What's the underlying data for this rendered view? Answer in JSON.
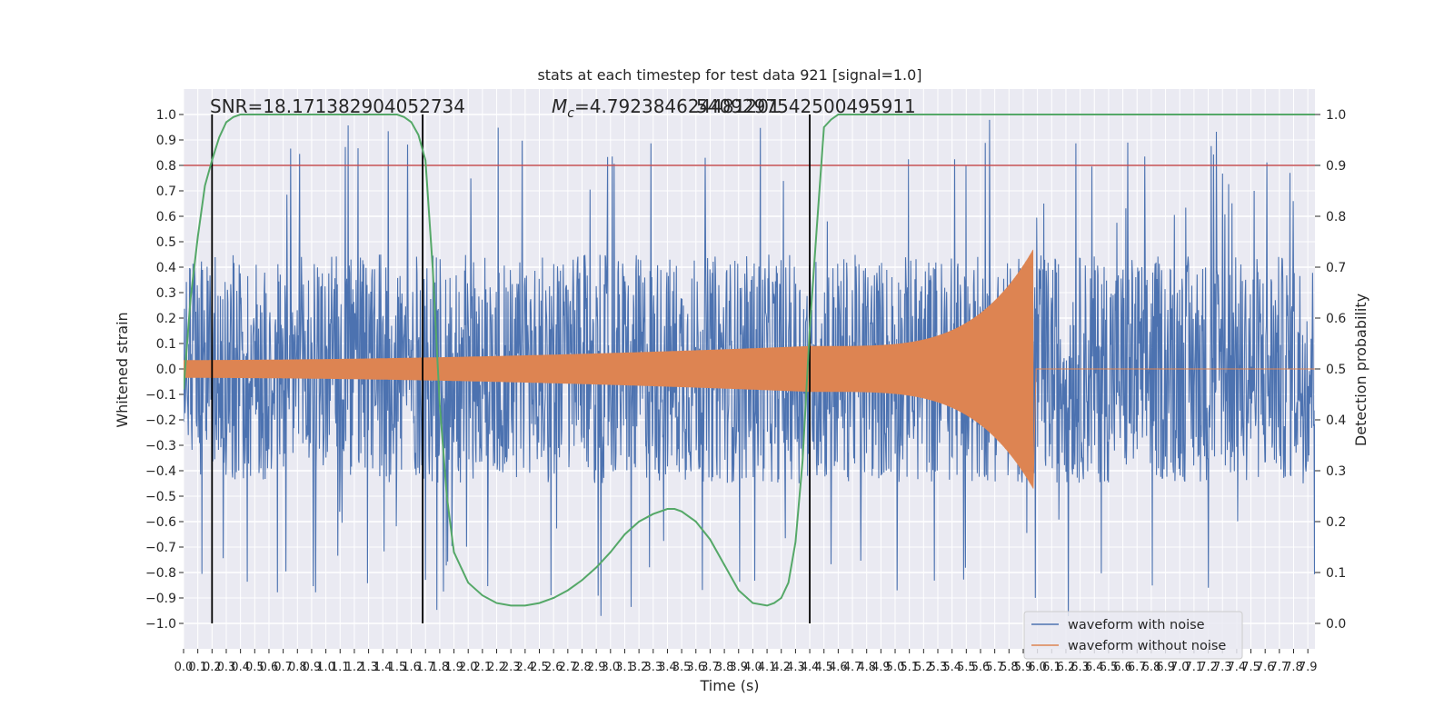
{
  "chart_data": {
    "type": "line",
    "title": "stats at each timestep for test data 921 [signal=1.0]",
    "xlabel": "Time (s)",
    "ylabel_left": "Whitened strain",
    "ylabel_right": "Detection probability",
    "xlim": [
      0.0,
      7.95
    ],
    "ylim_left": [
      -1.1,
      1.1
    ],
    "ylim_right": [
      -0.05,
      1.05
    ],
    "x_ticks": [
      0.0,
      0.1,
      0.2,
      0.3,
      0.4,
      0.5,
      0.6,
      0.7,
      0.8,
      0.9,
      1.0,
      1.1,
      1.2,
      1.3,
      1.4,
      1.5,
      1.6,
      1.7,
      1.8,
      1.9,
      2.0,
      2.1,
      2.2,
      2.3,
      2.4,
      2.5,
      2.6,
      2.7,
      2.8,
      2.9,
      3.0,
      3.1,
      3.2,
      3.3,
      3.4,
      3.5,
      3.6,
      3.7,
      3.8,
      3.9,
      4.0,
      4.1,
      4.2,
      4.3,
      4.4,
      4.5,
      4.6,
      4.7,
      4.8,
      4.9,
      5.0,
      5.1,
      5.2,
      5.3,
      5.4,
      5.5,
      5.6,
      5.7,
      5.8,
      5.9,
      6.0,
      6.1,
      6.2,
      6.3,
      6.4,
      6.5,
      6.6,
      6.7,
      6.8,
      6.9,
      7.0,
      7.1,
      7.2,
      7.3,
      7.4,
      7.5,
      7.6,
      7.7,
      7.8,
      7.9
    ],
    "y_ticks_left": [
      -1.0,
      -0.9,
      -0.8,
      -0.7,
      -0.6,
      -0.5,
      -0.4,
      -0.3,
      -0.2,
      -0.1,
      0.0,
      0.1,
      0.2,
      0.3,
      0.4,
      0.5,
      0.6,
      0.7,
      0.8,
      0.9,
      1.0
    ],
    "y_ticks_right": [
      0.0,
      0.1,
      0.2,
      0.3,
      0.4,
      0.5,
      0.6,
      0.7,
      0.8,
      0.9,
      1.0
    ],
    "grid": true,
    "legend_position": "lower-right",
    "colors": {
      "waveform_with_noise": "#4c72b0",
      "waveform_without_noise": "#dd8452",
      "detection_probability": "#55a868",
      "threshold": "#c44e52",
      "markers": "#000000",
      "axes_background": "#eaeaf2"
    },
    "annotations": {
      "snr": "SNR=18.171382904052734",
      "mc_prefix": "M",
      "mc_subscript": "c",
      "mc_value": "=4.792384624481201",
      "overlap_text": "5409297542500495911"
    },
    "threshold_line": 0.8,
    "vertical_markers": [
      0.2,
      1.68,
      4.4
    ],
    "series": [
      {
        "name": "waveform with noise",
        "kind": "noise",
        "x_range": [
          0.0,
          7.95
        ],
        "amplitude_typical": 0.45,
        "peak_max": 1.0,
        "peak_min": -1.0
      },
      {
        "name": "waveform without noise",
        "kind": "chirp",
        "x_range": [
          0.0,
          5.97
        ],
        "merger_time": 5.97,
        "initial_amplitude": 0.035,
        "amplitude_at_4_4s": 0.09,
        "peak_amplitude": 0.47
      },
      {
        "kind": "probability",
        "axis": "right",
        "x": [
          0.0,
          0.05,
          0.1,
          0.15,
          0.2,
          0.25,
          0.3,
          0.35,
          0.4,
          0.5,
          0.6,
          0.7,
          0.8,
          0.9,
          1.0,
          1.1,
          1.2,
          1.3,
          1.4,
          1.5,
          1.55,
          1.6,
          1.65,
          1.7,
          1.75,
          1.8,
          1.85,
          1.9,
          2.0,
          2.1,
          2.2,
          2.3,
          2.4,
          2.5,
          2.6,
          2.7,
          2.8,
          2.9,
          3.0,
          3.1,
          3.2,
          3.3,
          3.4,
          3.45,
          3.5,
          3.6,
          3.7,
          3.8,
          3.9,
          4.0,
          4.1,
          4.15,
          4.2,
          4.25,
          4.3,
          4.35,
          4.4,
          4.45,
          4.5,
          4.55,
          4.6,
          4.65,
          4.7,
          5.0,
          6.0,
          7.0,
          7.95
        ],
        "y": [
          0.46,
          0.64,
          0.76,
          0.86,
          0.91,
          0.955,
          0.985,
          0.995,
          1.0,
          1.0,
          1.0,
          1.0,
          1.0,
          1.0,
          1.0,
          1.0,
          1.0,
          1.0,
          1.0,
          1.0,
          0.995,
          0.985,
          0.96,
          0.91,
          0.7,
          0.43,
          0.25,
          0.14,
          0.08,
          0.055,
          0.04,
          0.035,
          0.035,
          0.04,
          0.05,
          0.065,
          0.085,
          0.11,
          0.14,
          0.175,
          0.2,
          0.215,
          0.225,
          0.225,
          0.22,
          0.2,
          0.165,
          0.115,
          0.065,
          0.04,
          0.035,
          0.04,
          0.05,
          0.08,
          0.16,
          0.32,
          0.58,
          0.78,
          0.975,
          0.99,
          1.0,
          1.0,
          1.0,
          1.0,
          1.0,
          1.0,
          1.0
        ]
      }
    ],
    "legend": [
      "waveform with noise",
      "waveform without noise"
    ]
  }
}
